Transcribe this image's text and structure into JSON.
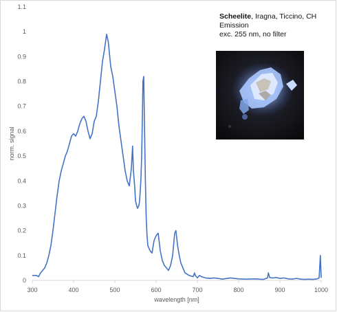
{
  "caption": {
    "mineral": "Scheelite",
    "locality": ", Iragna, Ticcino, CH",
    "line2": "Emission",
    "line3": "exc. 255 nm, no filter"
  },
  "chart_data": {
    "type": "line",
    "xlabel": "wavelength [nm]",
    "ylabel": "norm. signal",
    "xlim": [
      300,
      1000
    ],
    "ylim": [
      0,
      1.1
    ],
    "xticks": [
      "300",
      "400",
      "500",
      "600",
      "700",
      "800",
      "900",
      "1000"
    ],
    "yticks": [
      "0",
      "0.1",
      "0.2",
      "0.3",
      "0.4",
      "0.5",
      "0.6",
      "0.7",
      "0.8",
      "0.9",
      "1",
      "1.1"
    ],
    "grid": false,
    "line_color": "#4472c4",
    "series": [
      {
        "x": [
          300,
          305,
          310,
          315,
          320,
          325,
          330,
          335,
          340,
          345,
          350,
          355,
          360,
          365,
          370,
          375,
          380,
          385,
          390,
          395,
          400,
          405,
          410,
          415,
          420,
          425,
          430,
          435,
          440,
          445,
          450,
          455,
          460,
          465,
          470,
          475,
          480,
          484,
          487,
          490,
          495,
          500,
          505,
          510,
          515,
          520,
          525,
          530,
          535,
          540,
          543,
          545,
          548,
          550,
          553,
          555,
          558,
          560,
          563,
          565,
          567,
          568,
          570,
          572,
          574,
          576,
          578,
          580,
          585,
          590,
          595,
          600,
          605,
          610,
          615,
          620,
          625,
          630,
          635,
          640,
          645,
          648,
          652,
          656,
          660,
          665,
          670,
          680,
          690,
          693,
          695,
          700,
          705,
          710,
          720,
          730,
          740,
          750,
          760,
          780,
          800,
          820,
          840,
          860,
          870,
          872,
          875,
          880,
          885,
          890,
          900,
          910,
          920,
          930,
          940,
          950,
          960,
          970,
          980,
          990,
          995,
          998,
          1000
        ],
        "y": [
          0.02,
          0.02,
          0.02,
          0.015,
          0.03,
          0.04,
          0.05,
          0.07,
          0.1,
          0.14,
          0.2,
          0.27,
          0.34,
          0.4,
          0.44,
          0.47,
          0.5,
          0.52,
          0.55,
          0.58,
          0.59,
          0.58,
          0.6,
          0.63,
          0.65,
          0.66,
          0.64,
          0.6,
          0.57,
          0.59,
          0.64,
          0.66,
          0.72,
          0.8,
          0.88,
          0.93,
          0.99,
          0.96,
          0.91,
          0.86,
          0.82,
          0.76,
          0.7,
          0.62,
          0.56,
          0.5,
          0.44,
          0.4,
          0.38,
          0.45,
          0.54,
          0.44,
          0.38,
          0.32,
          0.3,
          0.29,
          0.3,
          0.32,
          0.4,
          0.5,
          0.68,
          0.8,
          0.82,
          0.6,
          0.4,
          0.25,
          0.18,
          0.14,
          0.12,
          0.11,
          0.16,
          0.18,
          0.19,
          0.12,
          0.08,
          0.06,
          0.05,
          0.04,
          0.06,
          0.1,
          0.19,
          0.2,
          0.14,
          0.1,
          0.07,
          0.05,
          0.03,
          0.02,
          0.015,
          0.03,
          0.02,
          0.01,
          0.02,
          0.015,
          0.01,
          0.008,
          0.01,
          0.008,
          0.005,
          0.01,
          0.006,
          0.005,
          0.006,
          0.004,
          0.01,
          0.03,
          0.012,
          0.01,
          0.01,
          0.012,
          0.008,
          0.01,
          0.006,
          0.005,
          0.008,
          0.005,
          0.004,
          0.005,
          0.004,
          0.006,
          0.01,
          0.1,
          0.01
        ]
      }
    ]
  }
}
